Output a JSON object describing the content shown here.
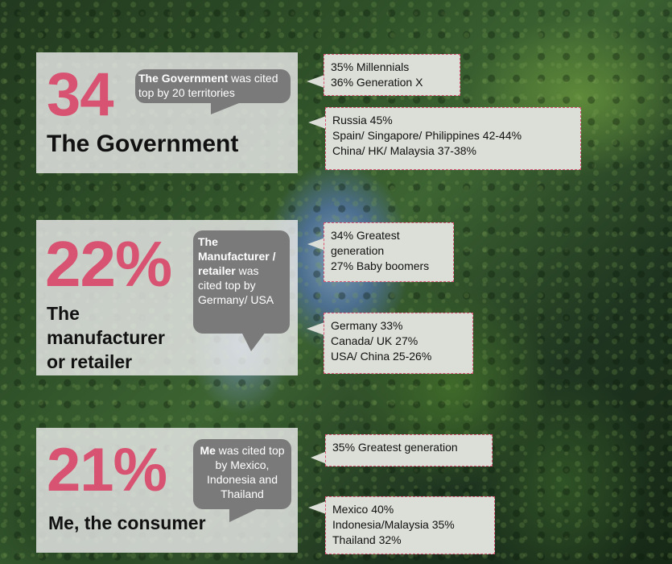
{
  "sections": [
    {
      "stat": "34",
      "label": "The Government",
      "bubble_bold": "The Government",
      "bubble_rest": " was cited top by 20 territories",
      "boxes": [
        [
          "35% Millennials",
          "36% Generation X"
        ],
        [
          "Russia 45%",
          "Spain/ Singapore/ Philippines 42-44%",
          "China/ HK/ Malaysia 37-38%"
        ]
      ]
    },
    {
      "stat": "22%",
      "label_lines": [
        "The",
        "manufacturer",
        "or retailer"
      ],
      "bubble_bold": "The Manufacturer / retailer",
      "bubble_rest": " was cited top by Germany/ USA",
      "boxes": [
        [
          "34% Greatest",
          "generation",
          "27% Baby boomers"
        ],
        [
          "Germany 33%",
          "Canada/ UK 27%",
          "USA/ China 25-26%"
        ]
      ]
    },
    {
      "stat": "21%",
      "label": "Me, the consumer",
      "bubble_bold": "Me",
      "bubble_rest": " was cited top by Mexico, Indonesia and Thailand",
      "boxes": [
        [
          "35% Greatest generation"
        ],
        [
          "Mexico 40%",
          "Indonesia/Malaysia 35%",
          "Thailand 32%"
        ]
      ]
    }
  ],
  "colors": {
    "accent": "#d85372",
    "bubble": "#7a7a7a",
    "panel": "#ebebeb",
    "box": "#dcdfd8"
  }
}
